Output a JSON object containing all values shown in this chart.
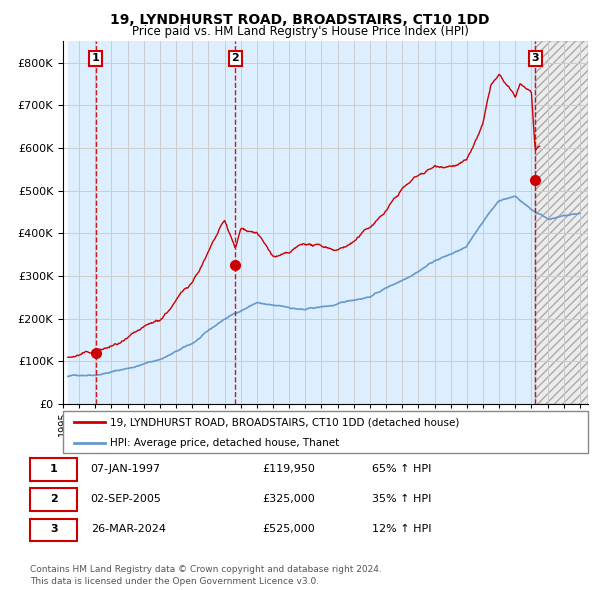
{
  "title": "19, LYNDHURST ROAD, BROADSTAIRS, CT10 1DD",
  "subtitle": "Price paid vs. HM Land Registry's House Price Index (HPI)",
  "legend_line1": "19, LYNDHURST ROAD, BROADSTAIRS, CT10 1DD (detached house)",
  "legend_line2": "HPI: Average price, detached house, Thanet",
  "footer1": "Contains HM Land Registry data © Crown copyright and database right 2024.",
  "footer2": "This data is licensed under the Open Government Licence v3.0.",
  "sales": [
    {
      "label": "1",
      "date": "07-JAN-1997",
      "price": 119950,
      "pct": "65%",
      "dir": "↑",
      "x_year": 1997.03
    },
    {
      "label": "2",
      "date": "02-SEP-2005",
      "price": 325000,
      "pct": "35%",
      "dir": "↑",
      "x_year": 2005.67
    },
    {
      "label": "3",
      "date": "26-MAR-2024",
      "price": 525000,
      "pct": "12%",
      "dir": "↑",
      "x_year": 2024.23
    }
  ],
  "ylim": [
    0,
    850000
  ],
  "xlim_start": 1995.3,
  "xlim_end": 2027.5,
  "hpi_color": "#6699cc",
  "price_color": "#cc0000",
  "dot_color": "#cc0000",
  "vline_color": "#cc0000",
  "bg_left_color": "#ddeeff",
  "grid_color": "#cccccc",
  "table_border_color": "#cc0000",
  "hpi_anchors_x": [
    1995.3,
    1997.0,
    1999.0,
    2001.0,
    2003.0,
    2005.0,
    2007.0,
    2008.0,
    2010.0,
    2012.0,
    2014.0,
    2016.0,
    2018.0,
    2020.0,
    2021.0,
    2022.0,
    2023.0,
    2024.0,
    2025.0,
    2027.0
  ],
  "hpi_anchors_y": [
    65000,
    72000,
    88000,
    110000,
    145000,
    200000,
    240000,
    230000,
    220000,
    230000,
    250000,
    290000,
    340000,
    370000,
    430000,
    480000,
    490000,
    460000,
    440000,
    450000
  ],
  "price_anchors_x": [
    1995.3,
    1996.0,
    1997.03,
    1999.0,
    2001.0,
    2003.0,
    2005.0,
    2005.68,
    2006.0,
    2007.0,
    2008.0,
    2009.0,
    2010.0,
    2011.0,
    2012.0,
    2013.0,
    2014.0,
    2015.0,
    2016.0,
    2017.0,
    2018.0,
    2019.0,
    2020.0,
    2021.0,
    2021.5,
    2022.0,
    2022.5,
    2023.0,
    2023.3,
    2024.0,
    2024.23,
    2024.5
  ],
  "price_anchors_y": [
    110000,
    115000,
    119950,
    140000,
    170000,
    260000,
    395000,
    325000,
    370000,
    365000,
    305000,
    305000,
    325000,
    315000,
    310000,
    330000,
    360000,
    400000,
    450000,
    480000,
    500000,
    510000,
    520000,
    600000,
    690000,
    710000,
    680000,
    650000,
    680000,
    660000,
    525000,
    525000
  ],
  "sale_dot_prices": [
    119950,
    325000,
    525000
  ]
}
